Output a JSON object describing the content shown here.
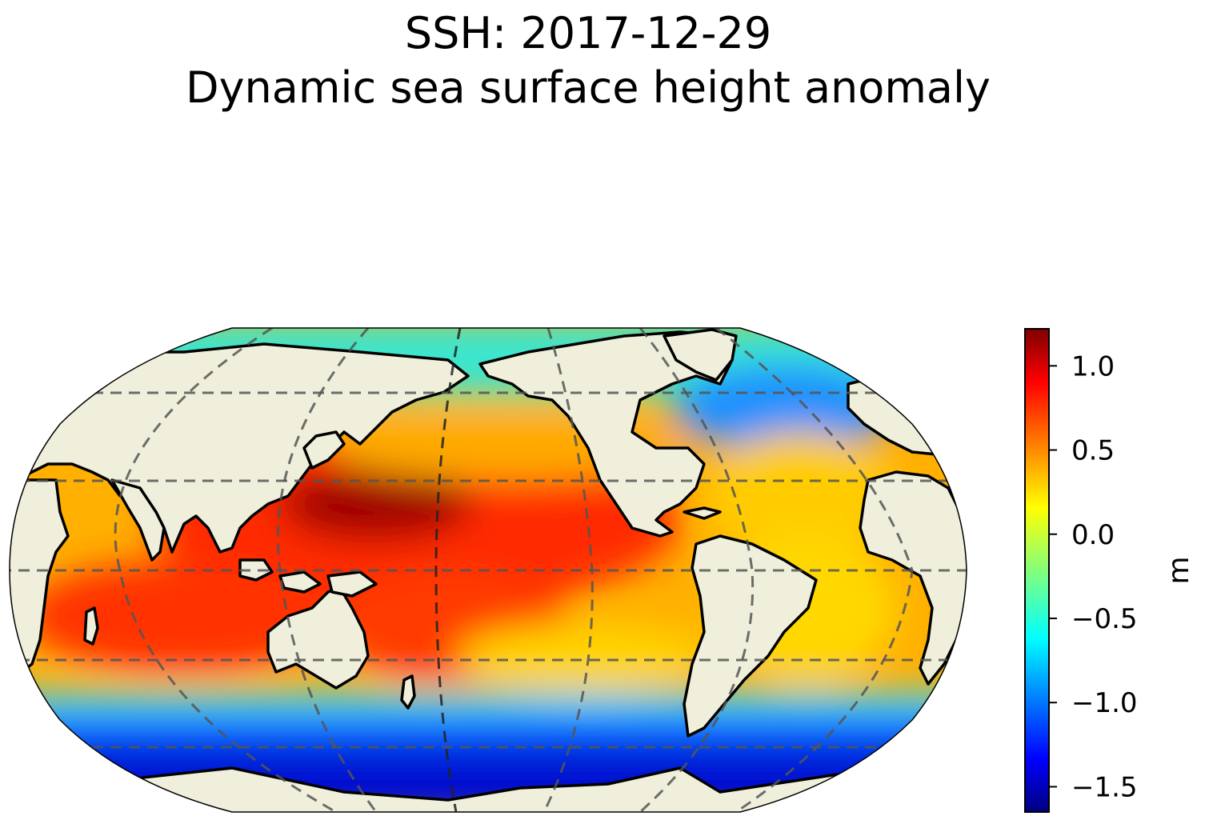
{
  "title": {
    "line1": "SSH: 2017-12-29",
    "line2": "Dynamic sea surface height anomaly"
  },
  "colorbar": {
    "unit": "m",
    "range": [
      -1.65,
      1.22
    ],
    "ticks": [
      {
        "value": 1.0,
        "label": "1.0"
      },
      {
        "value": 0.5,
        "label": "0.5"
      },
      {
        "value": 0.0,
        "label": "0.0"
      },
      {
        "value": -0.5,
        "label": "−0.5"
      },
      {
        "value": -1.0,
        "label": "−1.0"
      },
      {
        "value": -1.5,
        "label": "−1.5"
      }
    ],
    "colormap": "jet",
    "stops": [
      "#00007f",
      "#0000ff",
      "#00ffff",
      "#ffff00",
      "#ff0000",
      "#7f0000"
    ]
  },
  "map": {
    "projection": "robinson",
    "central_longitude": 180,
    "land_color": "#efefdb",
    "gridlines": "dashed"
  }
}
